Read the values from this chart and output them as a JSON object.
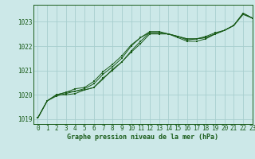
{
  "title": "Graphe pression niveau de la mer (hPa)",
  "background_color": "#cce8e8",
  "grid_color": "#a8cece",
  "line_color": "#1a5c1a",
  "xlim": [
    -0.5,
    23
  ],
  "ylim": [
    1018.8,
    1023.7
  ],
  "yticks": [
    1019,
    1020,
    1021,
    1022,
    1023
  ],
  "xticks": [
    0,
    1,
    2,
    3,
    4,
    5,
    6,
    7,
    8,
    9,
    10,
    11,
    12,
    13,
    14,
    15,
    16,
    17,
    18,
    19,
    20,
    21,
    22,
    23
  ],
  "series": [
    [
      1019.05,
      1019.75,
      1020.0,
      1020.0,
      1020.05,
      1020.2,
      1020.3,
      1020.65,
      1021.05,
      1021.35,
      1021.75,
      1022.1,
      1022.5,
      1022.5,
      1022.5,
      1022.4,
      1022.3,
      1022.3,
      1022.35,
      1022.5,
      1022.65,
      1022.85,
      1023.35,
      1023.15
    ],
    [
      1019.05,
      1019.75,
      1020.0,
      1020.1,
      1020.25,
      1020.3,
      1020.55,
      1020.95,
      1021.25,
      1021.6,
      1022.05,
      1022.35,
      1022.55,
      1022.55,
      1022.5,
      1022.4,
      1022.3,
      1022.3,
      1022.35,
      1022.5,
      1022.65,
      1022.85,
      1023.35,
      1023.15
    ],
    [
      1019.05,
      1019.75,
      1019.95,
      1020.05,
      1020.15,
      1020.2,
      1020.3,
      1020.7,
      1021.0,
      1021.35,
      1021.8,
      1022.2,
      1022.55,
      1022.55,
      1022.5,
      1022.35,
      1022.2,
      1022.2,
      1022.3,
      1022.5,
      1022.65,
      1022.85,
      1023.3,
      1023.15
    ],
    [
      1019.05,
      1019.75,
      1020.0,
      1020.1,
      1020.15,
      1020.25,
      1020.45,
      1020.85,
      1021.15,
      1021.5,
      1022.0,
      1022.35,
      1022.6,
      1022.6,
      1022.5,
      1022.4,
      1022.25,
      1022.3,
      1022.4,
      1022.55,
      1022.65,
      1022.85,
      1023.35,
      1023.15
    ]
  ]
}
